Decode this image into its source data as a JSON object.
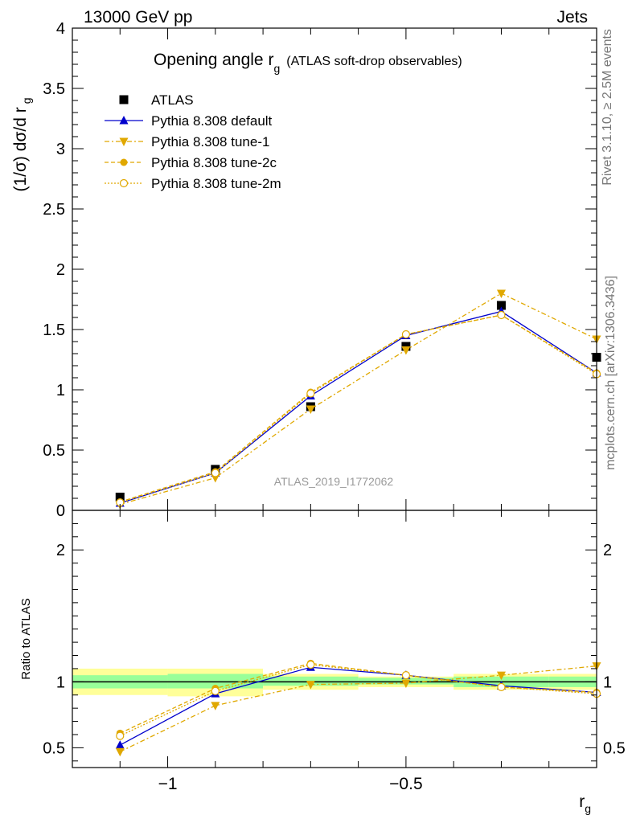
{
  "header": {
    "left": "13000 GeV pp",
    "right": "Jets"
  },
  "side_labels": {
    "rivet": "Rivet 3.1.10, ≥ 2.5M events",
    "mcplots": "mcplots.cern.ch [arXiv:1306.3436]"
  },
  "watermark": "ATLAS_2019_I1772062",
  "colors": {
    "data": "#000000",
    "default": "#0000cc",
    "tunes": "#e0a800",
    "band_inner": "#99ff99",
    "band_outer": "#ffff99"
  },
  "chart_data": [
    {
      "type": "line",
      "panel": "main",
      "title_main": "Opening angle r",
      "title_sub": "g",
      "title_extra": "(ATLAS soft-drop observables)",
      "ylabel_main": "(1/σ) dσ/d r",
      "ylabel_sub": "g",
      "xlim": [
        -1.2,
        -0.1
      ],
      "ylim": [
        0,
        4
      ],
      "yticks": [
        "0",
        "0.5",
        "1",
        "1.5",
        "2",
        "2.5",
        "3",
        "3.5",
        "4"
      ],
      "legend_position": "top-left",
      "x": [
        -1.1,
        -0.9,
        -0.7,
        -0.5,
        -0.3,
        -0.1
      ],
      "series": [
        {
          "name": "ATLAS",
          "marker": "square",
          "values": [
            0.11,
            0.34,
            0.86,
            1.36,
            1.7,
            1.27
          ]
        },
        {
          "name": "Pythia 8.308 default",
          "marker": "triangle-up",
          "values": [
            0.06,
            0.31,
            0.95,
            1.45,
            1.65,
            1.14
          ]
        },
        {
          "name": "Pythia 8.308 tune-1",
          "marker": "triangle-down",
          "values": [
            0.05,
            0.27,
            0.84,
            1.33,
            1.8,
            1.42
          ]
        },
        {
          "name": "Pythia 8.308 tune-2c",
          "marker": "circle",
          "values": [
            0.07,
            0.32,
            0.98,
            1.46,
            1.62,
            1.14
          ]
        },
        {
          "name": "Pythia 8.308 tune-2m",
          "marker": "circle-open",
          "values": [
            0.065,
            0.31,
            0.97,
            1.46,
            1.62,
            1.13
          ]
        }
      ]
    },
    {
      "type": "line",
      "panel": "ratio",
      "ylabel": "Ratio to ATLAS",
      "xlabel_main": "r",
      "xlabel_sub": "g",
      "xlim": [
        -1.2,
        -0.1
      ],
      "ylim": [
        0.35,
        2.3
      ],
      "xticks": [
        "−1",
        "−0.5"
      ],
      "yticks": [
        "0.5",
        "1",
        "2"
      ],
      "x": [
        -1.1,
        -0.9,
        -0.7,
        -0.5,
        -0.3,
        -0.1
      ],
      "band_edges": [
        -1.2,
        -1.0,
        -0.8,
        -0.6,
        -0.4,
        -0.2,
        -0.1
      ],
      "band_inner": [
        [
          0.95,
          1.05
        ],
        [
          0.95,
          1.06
        ],
        [
          0.97,
          1.04
        ],
        [
          0.98,
          1.03
        ],
        [
          0.96,
          1.04
        ],
        [
          0.96,
          1.04
        ]
      ],
      "band_outer": [
        [
          0.9,
          1.1
        ],
        [
          0.89,
          1.1
        ],
        [
          0.94,
          1.06
        ],
        [
          0.96,
          1.04
        ],
        [
          0.94,
          1.06
        ],
        [
          0.94,
          1.06
        ]
      ],
      "series": [
        {
          "name": "Pythia 8.308 default",
          "marker": "triangle-up",
          "values": [
            0.52,
            0.91,
            1.11,
            1.05,
            0.97,
            0.92
          ]
        },
        {
          "name": "Pythia 8.308 tune-1",
          "marker": "triangle-down",
          "values": [
            0.47,
            0.82,
            0.98,
            0.99,
            1.05,
            1.12
          ]
        },
        {
          "name": "Pythia 8.308 tune-2c",
          "marker": "circle",
          "values": [
            0.61,
            0.95,
            1.14,
            1.05,
            0.96,
            0.92
          ]
        },
        {
          "name": "Pythia 8.308 tune-2m",
          "marker": "circle-open",
          "values": [
            0.59,
            0.93,
            1.13,
            1.05,
            0.96,
            0.91
          ]
        }
      ]
    }
  ]
}
